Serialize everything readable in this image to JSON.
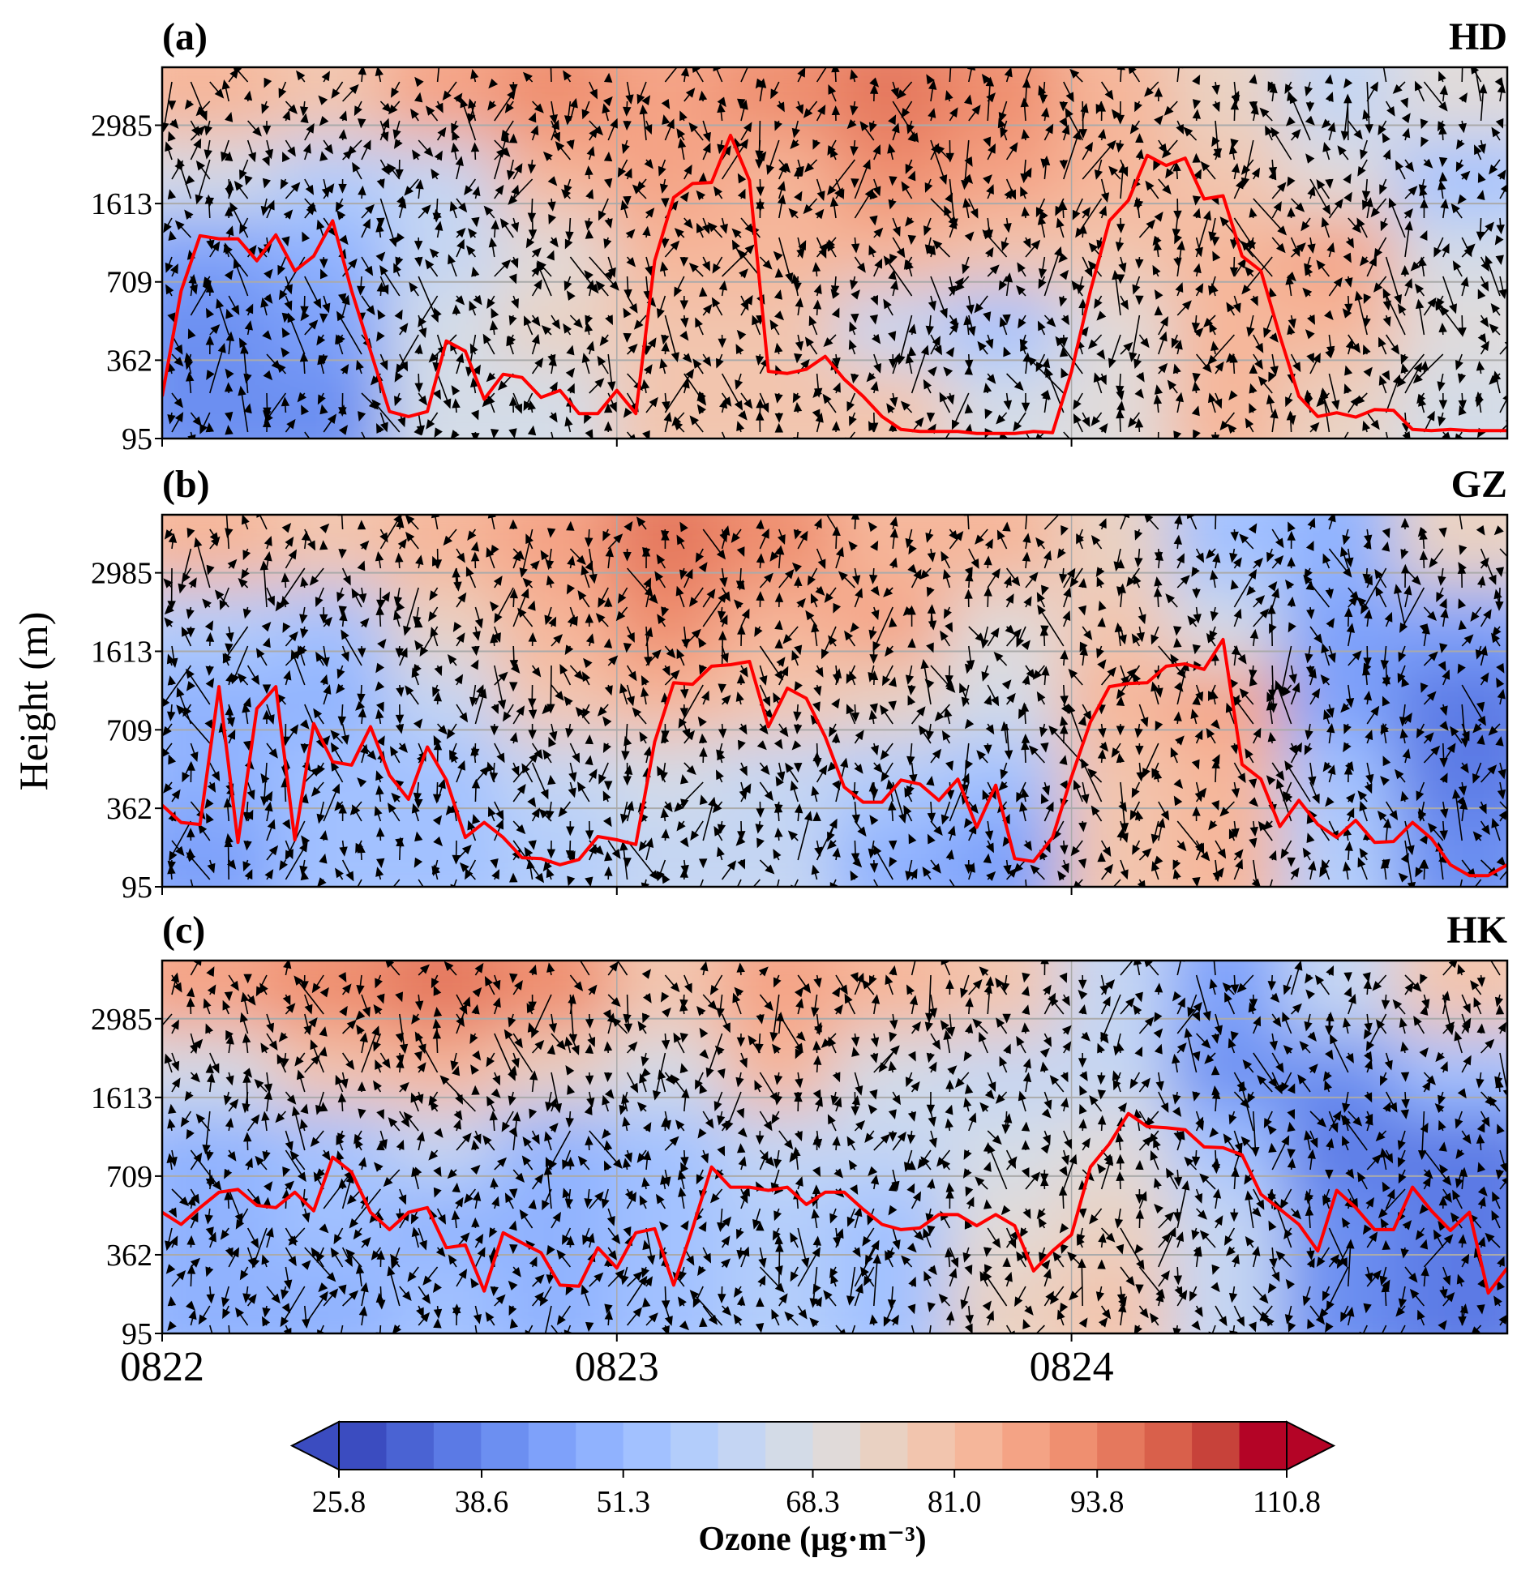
{
  "chart_data": {
    "type": "heatmap",
    "ylabel": "Height (m)",
    "xlabel": "",
    "x_unit": "hours since 0822 00:00",
    "xlim": [
      0,
      71
    ],
    "x_ticks": [
      {
        "value": 0,
        "label": "0822"
      },
      {
        "value": 24,
        "label": "0823"
      },
      {
        "value": 48,
        "label": "0824"
      }
    ],
    "y_ticks": [
      95,
      362,
      709,
      1613,
      2985
    ],
    "ylim": [
      95,
      4000
    ],
    "grid": true,
    "colorbar": {
      "label": "Ozone (μg·m⁻³)",
      "levels_min": 25.8,
      "levels_step": 4.25,
      "n_bins": 20,
      "extend": "both",
      "tick_values": [
        25.8,
        38.6,
        51.3,
        68.3,
        81.0,
        93.8,
        110.8
      ],
      "tick_labels": [
        "25.8",
        "38.6",
        "51.3",
        "68.3",
        "81.0",
        "93.8",
        "110.8"
      ],
      "colors": [
        "#3b4cc0",
        "#4a63d3",
        "#5b7ae5",
        "#6c8ff1",
        "#7ea1fa",
        "#90b2fe",
        "#a2c1ff",
        "#b3cdfb",
        "#c4d5f3",
        "#d3dbe7",
        "#e0dad9",
        "#e9d1c2",
        "#f2c5ae",
        "#f5b69a",
        "#f4a385",
        "#ef8f70",
        "#e5785d",
        "#d9604b",
        "#c7423a",
        "#b40426"
      ],
      "under_color": "#3b4cc0",
      "over_color": "#b40426"
    },
    "line_color": "#ff0000",
    "panels": [
      {
        "label": "(a)",
        "station": "HD",
        "pbl_height_m": [
          239,
          669,
          1242,
          1206,
          1206,
          953,
          1251,
          836,
          1007,
          1414,
          669,
          402,
          187,
          170,
          187,
          447,
          402,
          229,
          314,
          303,
          235,
          259,
          180,
          180,
          259,
          180,
          953,
          1719,
          1964,
          1983,
          2807,
          2018,
          324,
          317,
          331,
          379,
          297,
          239,
          170,
          126,
          119,
          119,
          119,
          112,
          112,
          112,
          119,
          115,
          324,
          669,
          1414,
          1668,
          2457,
          2280,
          2409,
          1693,
          1750,
          1007,
          836,
          469,
          239,
          170,
          183,
          168,
          194,
          191,
          126,
          122,
          126,
          122,
          122,
          122
        ],
        "ozone_grid_rows_top_to_bottom": [
          [
            85,
            80,
            88,
            90,
            88,
            90,
            95,
            90,
            85,
            75,
            60,
            70
          ],
          [
            65,
            58,
            62,
            82,
            88,
            85,
            92,
            88,
            85,
            80,
            70,
            55
          ],
          [
            45,
            48,
            62,
            72,
            85,
            82,
            85,
            78,
            80,
            82,
            88,
            65
          ],
          [
            42,
            45,
            66,
            75,
            80,
            78,
            60,
            55,
            72,
            82,
            82,
            70
          ],
          [
            40,
            42,
            66,
            65,
            78,
            80,
            78,
            66,
            72,
            82,
            75,
            66
          ]
        ]
      },
      {
        "label": "(b)",
        "station": "GZ",
        "pbl_height_m": [
          376,
          314,
          307,
          1206,
          246,
          953,
          1206,
          255,
          781,
          567,
          553,
          745,
          508,
          402,
          633,
          487,
          263,
          314,
          263,
          194,
          191,
          170,
          188,
          266,
          255,
          239,
          656,
          1251,
          1233,
          1441,
          1459,
          1496,
          745,
          1188,
          1071,
          678,
          456,
          389,
          389,
          487,
          469,
          397,
          491,
          297,
          464,
          191,
          181,
          263,
          501,
          799,
          1206,
          1242,
          1251,
          1441,
          1468,
          1405,
          1819,
          556,
          491,
          300,
          397,
          307,
          263,
          321,
          246,
          249,
          314,
          259,
          170,
          133,
          133,
          170
        ],
        "ozone_grid_rows_top_to_bottom": [
          [
            82,
            78,
            82,
            88,
            95,
            92,
            85,
            82,
            75,
            55,
            50,
            75
          ],
          [
            58,
            55,
            75,
            85,
            90,
            82,
            88,
            72,
            78,
            68,
            45,
            45
          ],
          [
            50,
            50,
            62,
            78,
            82,
            78,
            75,
            66,
            85,
            88,
            45,
            38
          ],
          [
            48,
            52,
            55,
            62,
            66,
            60,
            58,
            52,
            80,
            85,
            55,
            38
          ],
          [
            45,
            52,
            52,
            58,
            60,
            60,
            48,
            45,
            78,
            82,
            58,
            42
          ]
        ]
      },
      {
        "label": "(c)",
        "station": "HK",
        "pbl_height_m": [
          549,
          496,
          570,
          638,
          650,
          580,
          570,
          638,
          556,
          926,
          754,
          549,
          473,
          549,
          570,
          393,
          405,
          239,
          459,
          414,
          371,
          259,
          255,
          393,
          317,
          459,
          477,
          259,
          480,
          813,
          660,
          660,
          646,
          660,
          584,
          638,
          638,
          563,
          496,
          473,
          480,
          539,
          539,
          490,
          539,
          490,
          307,
          379,
          451,
          813,
          1080,
          1428,
          1278,
          1265,
          1242,
          1044,
          1035,
          953,
          629,
          563,
          496,
          379,
          646,
          570,
          473,
          473,
          660,
          556,
          469,
          549,
          232,
          317
        ],
        "ozone_grid_rows_top_to_bottom": [
          [
            88,
            92,
            95,
            92,
            78,
            88,
            82,
            78,
            62,
            45,
            60,
            80
          ],
          [
            65,
            80,
            85,
            75,
            65,
            85,
            66,
            64,
            62,
            42,
            40,
            55
          ],
          [
            50,
            55,
            60,
            50,
            55,
            62,
            60,
            66,
            72,
            55,
            35,
            38
          ],
          [
            48,
            52,
            50,
            48,
            55,
            58,
            55,
            72,
            75,
            60,
            40,
            35
          ],
          [
            48,
            50,
            55,
            48,
            55,
            58,
            55,
            75,
            78,
            60,
            40,
            35
          ]
        ]
      }
    ]
  }
}
